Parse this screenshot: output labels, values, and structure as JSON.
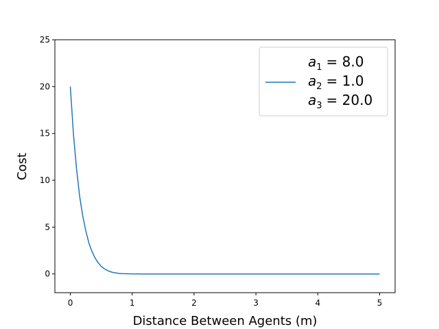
{
  "chart_data": {
    "type": "line",
    "xlabel": "Distance Between Agents (m)",
    "ylabel": "Cost",
    "xlim": [
      -0.25,
      5.25
    ],
    "ylim": [
      -2,
      25
    ],
    "xticks": [
      0,
      1,
      2,
      3,
      4,
      5
    ],
    "yticks": [
      0,
      5,
      10,
      15,
      20,
      25
    ],
    "grid": false,
    "legend_position": "top-right",
    "legend_lines": [
      {
        "var": "a",
        "sub": "1",
        "value": "= 8.0"
      },
      {
        "var": "a",
        "sub": "2",
        "value": "= 1.0"
      },
      {
        "var": "a",
        "sub": "3",
        "value": "= 20.0"
      }
    ],
    "series": [
      {
        "color": "#1f77b4",
        "x": [
          0,
          0.05,
          0.1,
          0.15,
          0.2,
          0.25,
          0.3,
          0.35,
          0.4,
          0.45,
          0.5,
          0.55,
          0.6,
          0.65,
          0.7,
          0.75,
          0.8,
          0.85,
          0.9,
          0.95,
          1.0,
          1.1,
          1.2,
          1.4,
          1.6,
          1.8,
          2.0,
          2.5,
          3.0,
          3.5,
          4.0,
          4.5,
          5.0
        ],
        "y": [
          20.0,
          14.9,
          11.2,
          8.3,
          6.2,
          4.6,
          3.3,
          2.4,
          1.7,
          1.2,
          0.8,
          0.55,
          0.36,
          0.23,
          0.14,
          0.09,
          0.05,
          0.03,
          0.02,
          0.01,
          0.007,
          0.003,
          0.001,
          0.0,
          0.0,
          0.0,
          0.0,
          0.0,
          0.0,
          0.0,
          0.0,
          0.0,
          0.0
        ]
      }
    ]
  }
}
